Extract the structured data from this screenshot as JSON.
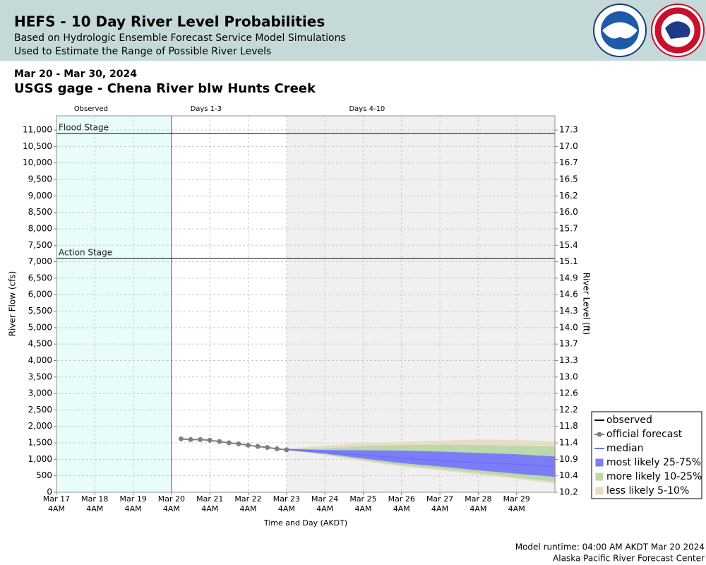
{
  "chart_data": {
    "type": "ensemble",
    "title": "HEFS - 10 Day River Level Probabilities",
    "subtitle": [
      "Based on Hydrologic Ensemble Forecast Service Model Simulations",
      "Used to Estimate the Range of Possible River Levels"
    ],
    "date_range": "Mar 20 - Mar 30, 2024",
    "station": "USGS gage - Chena River blw Hunts Creek",
    "y_label": "River Flow (cfs)",
    "y2_label": "River Level (ft)",
    "x_label": "Time and Day (AKDT)",
    "footer": [
      "Model runtime: 04:00 AM AKDT Mar 20 2024",
      "Alaska Pacific River Forecast Center"
    ],
    "xlim": [
      "2024-03-17T04:00",
      "2024-03-30T04:00"
    ],
    "xticks": [
      {
        "value": "2024-03-17T04:00",
        "label": "Mar 17 4AM"
      },
      {
        "value": "2024-03-18T04:00",
        "label": "Mar 18 4AM"
      },
      {
        "value": "2024-03-19T04:00",
        "label": "Mar 19 4AM"
      },
      {
        "value": "2024-03-20T04:00",
        "label": "Mar 20 4AM"
      },
      {
        "value": "2024-03-21T04:00",
        "label": "Mar 21 4AM"
      },
      {
        "value": "2024-03-22T04:00",
        "label": "Mar 22 4AM"
      },
      {
        "value": "2024-03-23T04:00",
        "label": "Mar 23 4AM"
      },
      {
        "value": "2024-03-24T04:00",
        "label": "Mar 24 4AM"
      },
      {
        "value": "2024-03-25T04:00",
        "label": "Mar 25 4AM"
      },
      {
        "value": "2024-03-26T04:00",
        "label": "Mar 26 4AM"
      },
      {
        "value": "2024-03-27T04:00",
        "label": "Mar 27 4AM"
      },
      {
        "value": "2024-03-28T04:00",
        "label": "Mar 28 4AM"
      },
      {
        "value": "2024-03-29T04:00",
        "label": "Mar 29 4AM"
      }
    ],
    "ylim": [
      0,
      11430
    ],
    "yticks": [
      0,
      500,
      {
        "value": 1000,
        "label": "1,000"
      },
      {
        "value": 1500,
        "label": "1,500"
      },
      {
        "value": 2000,
        "label": "2,000"
      },
      {
        "value": 2500,
        "label": "2,500"
      },
      {
        "value": 3000,
        "label": "3,000"
      },
      {
        "value": 3500,
        "label": "3,500"
      },
      {
        "value": 4000,
        "label": "4,000"
      },
      {
        "value": 4500,
        "label": "4,500"
      },
      {
        "value": 5000,
        "label": "5,000"
      },
      {
        "value": 5500,
        "label": "5,500"
      },
      {
        "value": 6000,
        "label": "6,000"
      },
      {
        "value": 6500,
        "label": "6,500"
      },
      {
        "value": 7000,
        "label": "7,000"
      },
      {
        "value": 7500,
        "label": "7,500"
      },
      {
        "value": 8000,
        "label": "8,000"
      },
      {
        "value": 8500,
        "label": "8,500"
      },
      {
        "value": 9000,
        "label": "9,000"
      },
      {
        "value": 9500,
        "label": "9,500"
      },
      {
        "value": 10000,
        "label": "10,000"
      },
      {
        "value": 10500,
        "label": "10,500"
      },
      {
        "value": 11000,
        "label": "11,000"
      }
    ],
    "y2ticks": [
      10.2,
      10.4,
      10.9,
      11.4,
      11.8,
      12.2,
      12.6,
      {
        "value": 13,
        "label": "13.0"
      },
      13.3,
      13.7,
      {
        "value": 14,
        "label": "14.0"
      },
      14.3,
      14.6,
      14.9,
      15.1,
      15.4,
      15.7,
      {
        "value": 16,
        "label": "16.0"
      },
      16.2,
      16.5,
      16.7,
      {
        "value": 17,
        "label": "17.0"
      },
      17.3
    ],
    "grid": true,
    "periods": [
      {
        "label": "Observed",
        "start": "2024-03-17T04:00",
        "end": "2024-03-20T04:00",
        "color": "#e8fcfc"
      },
      {
        "label": "Days 1-3",
        "start": "2024-03-20T04:00",
        "end": "2024-03-23T04:00",
        "color": "#ffffff"
      },
      {
        "label": "Days 4-10",
        "start": "2024-03-23T04:00",
        "end": "2024-03-30T04:00",
        "color": "#f0f0f0"
      }
    ],
    "forecast_start": "2024-03-20T04:00",
    "thresholds": [
      {
        "label": "Flood Stage",
        "value": 10890
      },
      {
        "label": "Action Stage",
        "value": 7100
      }
    ],
    "series": [
      {
        "name": "observed",
        "color": "#000000"
      },
      {
        "name": "official forecast",
        "color": "#808080",
        "x": [
          "2024-03-20T10:00",
          "2024-03-20T16:00",
          "2024-03-20T22:00",
          "2024-03-21T04:00",
          "2024-03-21T10:00",
          "2024-03-21T16:00",
          "2024-03-21T22:00",
          "2024-03-22T04:00",
          "2024-03-22T10:00",
          "2024-03-22T16:00",
          "2024-03-22T22:00",
          "2024-03-23T04:00"
        ],
        "values": [
          1620,
          1600,
          1600,
          1580,
          1540,
          1500,
          1470,
          1430,
          1390,
          1360,
          1320,
          1290
        ]
      },
      {
        "name": "median",
        "color": "#7070ff",
        "x": [
          "2024-03-23T04:00",
          "2024-03-24T04:00",
          "2024-03-25T04:00",
          "2024-03-26T04:00",
          "2024-03-27T04:00",
          "2024-03-28T04:00",
          "2024-03-29T04:00",
          "2024-03-30T04:00"
        ],
        "values": [
          1300,
          1220,
          1130,
          1040,
          960,
          900,
          850,
          780
        ]
      }
    ],
    "bands": [
      {
        "name": "most likely 25-75%",
        "color": "#7c7cf6",
        "x": [
          "2024-03-23T04:00",
          "2024-03-24T04:00",
          "2024-03-25T04:00",
          "2024-03-26T04:00",
          "2024-03-27T04:00",
          "2024-03-28T04:00",
          "2024-03-29T04:00",
          "2024-03-30T04:00"
        ],
        "upper": [
          1300,
          1270,
          1260,
          1250,
          1220,
          1180,
          1140,
          1070
        ],
        "lower": [
          1300,
          1190,
          1040,
          900,
          800,
          680,
          580,
          480
        ]
      },
      {
        "name": "more likely 10-25%",
        "color": "#bcd8ac",
        "x": [
          "2024-03-23T04:00",
          "2024-03-24T04:00",
          "2024-03-25T04:00",
          "2024-03-26T04:00",
          "2024-03-27T04:00",
          "2024-03-28T04:00",
          "2024-03-29T04:00",
          "2024-03-30T04:00"
        ],
        "upper": [
          1300,
          1320,
          1380,
          1420,
          1430,
          1420,
          1400,
          1370
        ],
        "lower": [
          1300,
          1160,
          990,
          830,
          720,
          600,
          470,
          330
        ]
      },
      {
        "name": "less likely 5-10%",
        "color": "#e9dcc4",
        "x": [
          "2024-03-23T04:00",
          "2024-03-24T04:00",
          "2024-03-25T04:00",
          "2024-03-26T04:00",
          "2024-03-27T04:00",
          "2024-03-28T04:00",
          "2024-03-29T04:00",
          "2024-03-30T04:00"
        ],
        "upper": [
          1300,
          1400,
          1480,
          1520,
          1550,
          1590,
          1570,
          1530
        ],
        "lower": [
          1300,
          1150,
          960,
          800,
          680,
          550,
          420,
          280
        ]
      }
    ]
  }
}
